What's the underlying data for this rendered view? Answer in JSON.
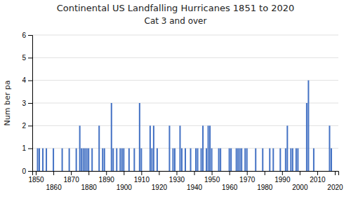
{
  "chart_data": {
    "type": "bar",
    "title": "Continental US Landfalling Hurricanes 1851 to 2020",
    "subtitle": "Cat 3 and over",
    "y_label": "Num ber pa",
    "x": [
      1851,
      1852,
      1854,
      1856,
      1860,
      1865,
      1869,
      1873,
      1875,
      1876,
      1877,
      1878,
      1879,
      1880,
      1882,
      1886,
      1888,
      1889,
      1893,
      1894,
      1896,
      1898,
      1899,
      1900,
      1903,
      1906,
      1909,
      1910,
      1915,
      1916,
      1917,
      1919,
      1926,
      1928,
      1929,
      1932,
      1933,
      1935,
      1938,
      1941,
      1942,
      1944,
      1945,
      1947,
      1948,
      1949,
      1950,
      1954,
      1955,
      1960,
      1961,
      1964,
      1965,
      1966,
      1967,
      1969,
      1970,
      1975,
      1979,
      1983,
      1985,
      1989,
      1992,
      1993,
      1995,
      1996,
      1998,
      1999,
      2004,
      2005,
      2008,
      2017,
      2018
    ],
    "values": [
      1,
      1,
      1,
      1,
      1,
      1,
      1,
      1,
      2,
      1,
      1,
      1,
      1,
      1,
      1,
      2,
      1,
      1,
      3,
      1,
      1,
      1,
      1,
      1,
      1,
      1,
      3,
      1,
      2,
      1,
      2,
      1,
      2,
      1,
      1,
      2,
      1,
      1,
      1,
      1,
      1,
      1,
      2,
      1,
      2,
      2,
      1,
      1,
      1,
      1,
      1,
      1,
      1,
      1,
      1,
      1,
      1,
      1,
      1,
      1,
      1,
      1,
      1,
      2,
      1,
      1,
      1,
      1,
      3,
      4,
      1,
      2,
      1
    ],
    "color": "#4472C4",
    "xlim": [
      1848,
      2022
    ],
    "xticks": [
      1850,
      1860,
      1870,
      1880,
      1890,
      1900,
      1910,
      1920,
      1930,
      1940,
      1950,
      1960,
      1970,
      1980,
      1990,
      2000,
      2010,
      2020
    ],
    "ylim": [
      0,
      6
    ],
    "yticks": [
      0,
      1,
      2,
      3,
      4,
      5,
      6
    ],
    "grid": true
  }
}
